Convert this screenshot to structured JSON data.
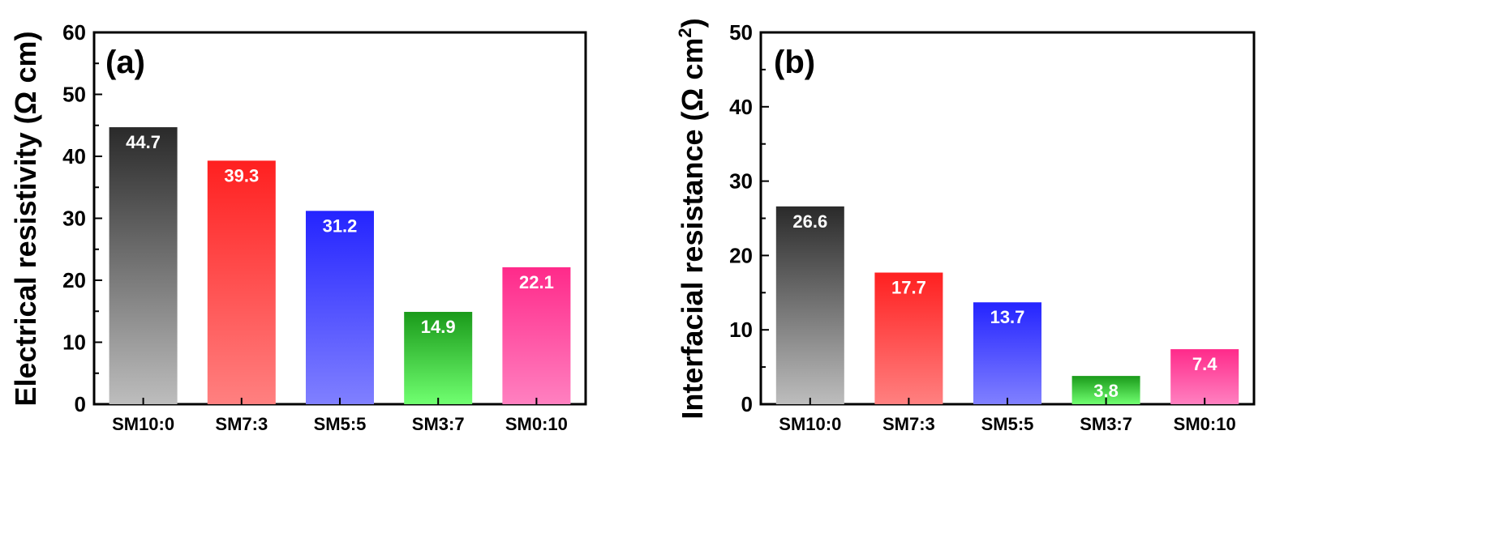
{
  "chart_data": [
    {
      "type": "bar",
      "panel_label": "(a)",
      "ylabel": "Electrical resistivity (Ω cm)",
      "ylim": [
        0,
        60
      ],
      "yticks": [
        0,
        10,
        20,
        30,
        40,
        50,
        60
      ],
      "categories": [
        "SM10:0",
        "SM7:3",
        "SM5:5",
        "SM3:7",
        "SM0:10"
      ],
      "values": [
        44.7,
        39.3,
        31.2,
        14.9,
        22.1
      ],
      "value_labels": [
        "44.7",
        "39.3",
        "31.2",
        "14.9",
        "22.1"
      ]
    },
    {
      "type": "bar",
      "panel_label": "(b)",
      "ylabel": "Interfacial resistance (Ω cm",
      "ylabel_superscript": "2",
      "ylabel_suffix": ")",
      "ylim": [
        0,
        50
      ],
      "yticks": [
        0,
        10,
        20,
        30,
        40,
        50
      ],
      "categories": [
        "SM10:0",
        "SM7:3",
        "SM5:5",
        "SM3:7",
        "SM0:10"
      ],
      "values": [
        26.6,
        17.7,
        13.7,
        3.8,
        7.4
      ],
      "value_labels": [
        "26.6",
        "17.7",
        "13.7",
        "3.8",
        "7.4"
      ]
    }
  ],
  "bar_colors": [
    {
      "top": "#2a2a2a",
      "bottom": "#bdbdbd"
    },
    {
      "top": "#ff2020",
      "bottom": "#ff8080"
    },
    {
      "top": "#2424ff",
      "bottom": "#8080ff"
    },
    {
      "top": "#1a9a1a",
      "bottom": "#70ff70"
    },
    {
      "top": "#ff2a8a",
      "bottom": "#ff80c0"
    }
  ]
}
